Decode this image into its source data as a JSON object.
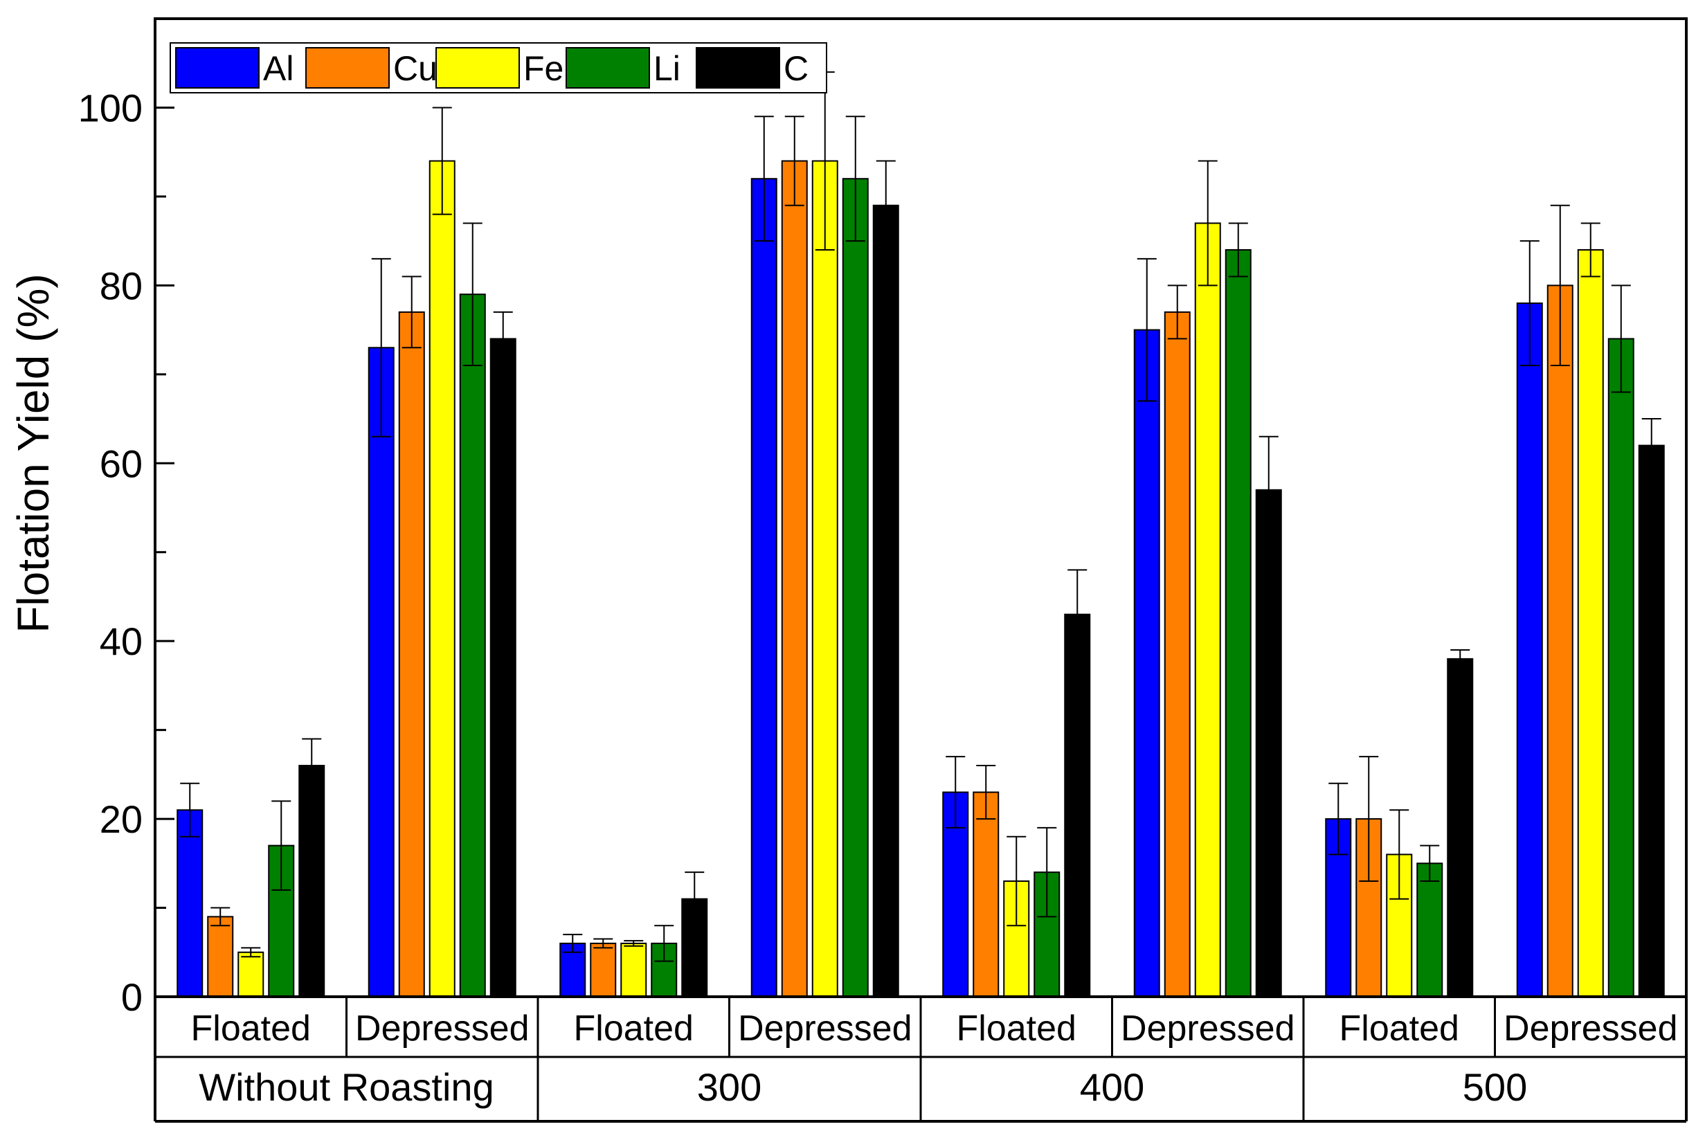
{
  "chart_data": {
    "type": "bar",
    "ylabel": "Flotation Yield (%)",
    "ylim": [
      0,
      110
    ],
    "yticks": [
      0,
      20,
      40,
      60,
      80,
      100
    ],
    "legend": {
      "placement": "top-left",
      "entries": [
        "Al",
        "Cu",
        "Fe",
        "Li",
        "C"
      ]
    },
    "groups": [
      {
        "label": "Without Roasting",
        "subgroups": [
          "Floated",
          "Depressed"
        ]
      },
      {
        "label": "300",
        "subgroups": [
          "Floated",
          "Depressed"
        ]
      },
      {
        "label": "400",
        "subgroups": [
          "Floated",
          "Depressed"
        ]
      },
      {
        "label": "500",
        "subgroups": [
          "Floated",
          "Depressed"
        ]
      }
    ],
    "series": [
      {
        "name": "Al",
        "color": "#0000ff",
        "values": [
          21,
          73,
          6,
          92,
          23,
          75,
          20,
          78
        ],
        "errors": [
          3,
          10,
          1,
          7,
          4,
          8,
          4,
          7
        ]
      },
      {
        "name": "Cu",
        "color": "#ff7f00",
        "values": [
          9,
          77,
          6,
          94,
          23,
          77,
          20,
          80
        ],
        "errors": [
          1,
          4,
          0.5,
          5,
          3,
          3,
          7,
          9
        ]
      },
      {
        "name": "Fe",
        "color": "#ffff00",
        "values": [
          5,
          94,
          6,
          94,
          13,
          87,
          16,
          84
        ],
        "errors": [
          0.5,
          6,
          0.3,
          10,
          5,
          7,
          5,
          3
        ]
      },
      {
        "name": "Li",
        "color": "#008000",
        "values": [
          17,
          79,
          6,
          92,
          14,
          84,
          15,
          74
        ],
        "errors": [
          5,
          8,
          2,
          7,
          5,
          3,
          2,
          6
        ]
      },
      {
        "name": "C",
        "color": "#000000",
        "values": [
          26,
          74,
          11,
          89,
          43,
          57,
          38,
          62
        ],
        "errors": [
          3,
          3,
          3,
          5,
          5,
          6,
          1,
          3
        ]
      }
    ]
  }
}
